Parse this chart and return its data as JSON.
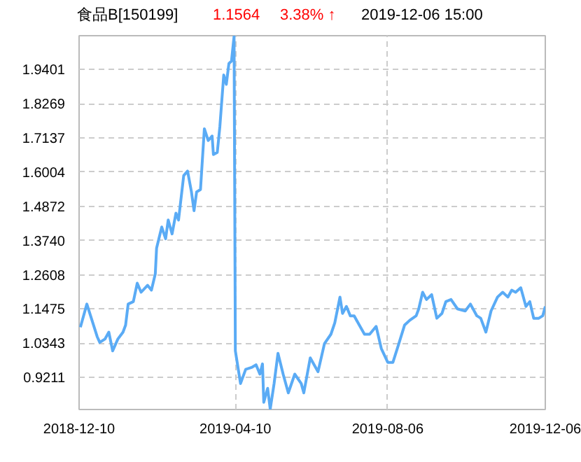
{
  "chart_data": {
    "type": "line",
    "title": "食品B[150199]",
    "annotations": [
      "1.1564",
      "3.38% ↑",
      "2019-12-06 15:00"
    ],
    "x": [
      "2018-12-11",
      "2018-12-16",
      "2018-12-20",
      "2018-12-24",
      "2018-12-26",
      "2018-12-30",
      "2019-01-02",
      "2019-01-05",
      "2019-01-09",
      "2019-01-13",
      "2019-01-15",
      "2019-01-17",
      "2019-01-21",
      "2019-01-24",
      "2019-01-27",
      "2019-02-01",
      "2019-02-04",
      "2019-02-07",
      "2019-02-08",
      "2019-02-12",
      "2019-02-15",
      "2019-02-17",
      "2019-02-20",
      "2019-02-23",
      "2019-02-25",
      "2019-03-01",
      "2019-03-04",
      "2019-03-07",
      "2019-03-09",
      "2019-03-11",
      "2019-03-14",
      "2019-03-17",
      "2019-03-20",
      "2019-03-23",
      "2019-03-24",
      "2019-03-27",
      "2019-03-29",
      "2019-04-01",
      "2019-04-03",
      "2019-04-05",
      "2019-04-07",
      "2019-04-09",
      "2019-04-10",
      "2019-04-14",
      "2019-04-18",
      "2019-04-23",
      "2019-04-26",
      "2019-04-29",
      "2019-05-01",
      "2019-05-02",
      "2019-05-05",
      "2019-05-07",
      "2019-05-10",
      "2019-05-13",
      "2019-05-17",
      "2019-05-21",
      "2019-05-26",
      "2019-05-31",
      "2019-06-02",
      "2019-06-07",
      "2019-06-13",
      "2019-06-18",
      "2019-06-23",
      "2019-06-26",
      "2019-06-30",
      "2019-07-02",
      "2019-07-05",
      "2019-07-08",
      "2019-07-11",
      "2019-07-15",
      "2019-07-19",
      "2019-07-23",
      "2019-07-28",
      "2019-08-01",
      "2019-08-06",
      "2019-08-10",
      "2019-08-14",
      "2019-08-19",
      "2019-08-23",
      "2019-08-28",
      "2019-08-30",
      "2019-09-02",
      "2019-09-05",
      "2019-09-09",
      "2019-09-13",
      "2019-09-17",
      "2019-09-20",
      "2019-09-24",
      "2019-09-29",
      "2019-10-05",
      "2019-10-09",
      "2019-10-14",
      "2019-10-17",
      "2019-10-21",
      "2019-10-25",
      "2019-10-30",
      "2019-11-03",
      "2019-11-07",
      "2019-11-10",
      "2019-11-13",
      "2019-11-17",
      "2019-11-21",
      "2019-11-24",
      "2019-11-27",
      "2019-12-01",
      "2019-12-04",
      "2019-12-06"
    ],
    "series": [
      {
        "color": "#5aabf5",
        "values": [
          1.087,
          1.164,
          1.11,
          1.056,
          1.037,
          1.048,
          1.071,
          1.009,
          1.048,
          1.071,
          1.094,
          1.164,
          1.172,
          1.233,
          1.203,
          1.226,
          1.21,
          1.264,
          1.349,
          1.419,
          1.38,
          1.442,
          1.396,
          1.465,
          1.442,
          1.589,
          1.604,
          1.535,
          1.473,
          1.535,
          1.543,
          1.744,
          1.705,
          1.72,
          1.659,
          1.666,
          1.751,
          1.922,
          1.891,
          1.96,
          1.968,
          2.05,
          1.009,
          0.901,
          0.948,
          0.955,
          0.963,
          0.932,
          0.966,
          0.839,
          0.885,
          0.816,
          0.901,
          1.001,
          0.932,
          0.87,
          0.932,
          0.901,
          0.87,
          0.986,
          0.94,
          1.033,
          1.064,
          1.102,
          1.187,
          1.133,
          1.156,
          1.125,
          1.125,
          1.094,
          1.064,
          1.064,
          1.09,
          1.017,
          0.971,
          0.971,
          1.025,
          1.094,
          1.11,
          1.125,
          1.148,
          1.203,
          1.179,
          1.195,
          1.117,
          1.133,
          1.172,
          1.179,
          1.148,
          1.141,
          1.164,
          1.125,
          1.117,
          1.071,
          1.141,
          1.187,
          1.203,
          1.187,
          1.21,
          1.203,
          1.218,
          1.156,
          1.172,
          1.117,
          1.117,
          1.125,
          1.156
        ]
      }
    ],
    "xlim": [
      "2018-12-10",
      "2019-12-06"
    ],
    "xticks": [
      "2018-12-10",
      "2019-04-10",
      "2019-08-06",
      "2019-12-06"
    ],
    "ylim": [
      0.815,
      2.052
    ],
    "yticks": [
      0.9211,
      1.0343,
      1.1475,
      1.2608,
      {
        "value": 1.374,
        "label": "1.3740"
      },
      1.4872,
      1.6004,
      1.7137,
      1.8269,
      1.9401
    ],
    "grid": true,
    "marker": "none",
    "line_style": "solid"
  }
}
